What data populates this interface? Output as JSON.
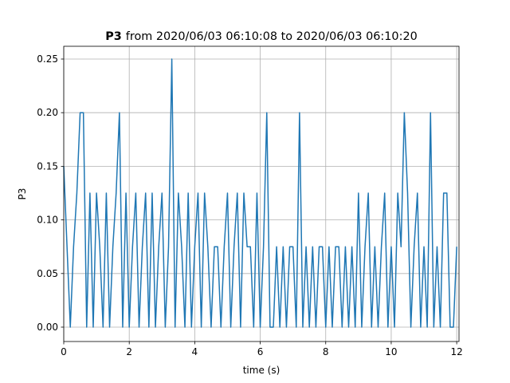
{
  "chart_data": {
    "type": "line",
    "title": {
      "bold": "P3",
      "text": "from 2020/06/03 06:10:08 to 2020/06/03 06:10:20"
    },
    "x_label": "time (s)",
    "y_label": "P3",
    "x": [
      0,
      0.1,
      0.2,
      0.3,
      0.4,
      0.5,
      0.6,
      0.7,
      0.8,
      0.9,
      1.0,
      1.1,
      1.2,
      1.3,
      1.4,
      1.5,
      1.6,
      1.7,
      1.8,
      1.9,
      2.0,
      2.1,
      2.2,
      2.3,
      2.4,
      2.5,
      2.6,
      2.7,
      2.8,
      2.9,
      3.0,
      3.1,
      3.2,
      3.3,
      3.4,
      3.5,
      3.6,
      3.7,
      3.8,
      3.9,
      4.0,
      4.1,
      4.2,
      4.3,
      4.4,
      4.5,
      4.6,
      4.7,
      4.8,
      4.9,
      5.0,
      5.1,
      5.2,
      5.3,
      5.4,
      5.5,
      5.6,
      5.7,
      5.8,
      5.9,
      6.0,
      6.1,
      6.2,
      6.3,
      6.4,
      6.5,
      6.6,
      6.7,
      6.8,
      6.9,
      7.0,
      7.1,
      7.2,
      7.3,
      7.4,
      7.5,
      7.6,
      7.7,
      7.8,
      7.9,
      8.0,
      8.1,
      8.2,
      8.3,
      8.4,
      8.5,
      8.6,
      8.7,
      8.8,
      8.9,
      9.0,
      9.1,
      9.2,
      9.3,
      9.4,
      9.5,
      9.6,
      9.7,
      9.8,
      9.9,
      10.0,
      10.1,
      10.2,
      10.3,
      10.4,
      10.5,
      10.6,
      10.7,
      10.8,
      10.9,
      11.0,
      11.1,
      11.2,
      11.3,
      11.4,
      11.5,
      11.6,
      11.7,
      11.8,
      11.9,
      12.0
    ],
    "series": [
      {
        "name": "P3",
        "color": "#1f77b4",
        "values": [
          0.15,
          0.075,
          0,
          0.075,
          0.125,
          0.2,
          0.2,
          0,
          0.125,
          0,
          0.125,
          0.075,
          0,
          0.125,
          0,
          0.075,
          0.125,
          0.2,
          0,
          0.125,
          0,
          0.075,
          0.125,
          0,
          0.075,
          0.125,
          0,
          0.125,
          0,
          0.075,
          0.125,
          0,
          0.075,
          0.25,
          0,
          0.125,
          0.075,
          0,
          0.125,
          0,
          0.075,
          0.125,
          0,
          0.125,
          0.075,
          0,
          0.075,
          0.075,
          0,
          0.075,
          0.125,
          0,
          0.075,
          0.125,
          0,
          0.125,
          0.075,
          0.075,
          0,
          0.125,
          0,
          0.075,
          0.2,
          0,
          0,
          0.075,
          0,
          0.075,
          0,
          0.075,
          0.075,
          0,
          0.2,
          0,
          0.075,
          0,
          0.075,
          0,
          0.075,
          0.075,
          0,
          0.075,
          0,
          0.075,
          0.075,
          0,
          0.075,
          0,
          0.075,
          0,
          0.125,
          0,
          0.075,
          0.125,
          0,
          0.075,
          0,
          0.075,
          0.125,
          0,
          0.075,
          0,
          0.125,
          0.075,
          0.2,
          0.125,
          0,
          0.075,
          0.125,
          0,
          0.075,
          0,
          0.2,
          0,
          0.075,
          0,
          0.125,
          0.125,
          0,
          0,
          0.075
        ]
      }
    ],
    "xlim": [
      0,
      12.07
    ],
    "ylim": [
      -0.0134,
      0.2619
    ],
    "xticks": [
      0,
      2,
      4,
      6,
      8,
      10,
      12
    ],
    "yticks": [
      {
        "value": 0,
        "label": "0.00"
      },
      {
        "value": 0.05,
        "label": "0.05"
      },
      {
        "value": 0.1,
        "label": "0.10"
      },
      {
        "value": 0.15,
        "label": "0.15"
      },
      {
        "value": 0.2,
        "label": "0.20"
      },
      {
        "value": 0.25,
        "label": "0.25"
      }
    ],
    "grid": true
  }
}
